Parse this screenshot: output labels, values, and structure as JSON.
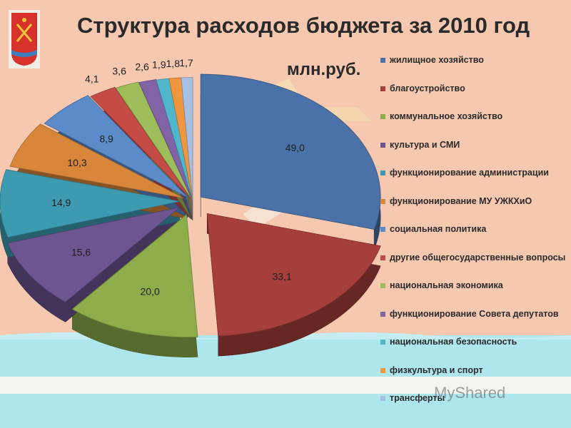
{
  "title": "Структура расходов бюджета за 2010 год",
  "unit_label": "млн.руб.",
  "emblem_icon": "coat-of-arms-icon",
  "watermark": "MyShared",
  "colors": {
    "background": "#f6c8b0",
    "sea": "#aee6ee",
    "stripe": "#f7f3ee"
  },
  "chart_data": {
    "type": "pie",
    "style": "3d-exploded",
    "title": "Структура расходов бюджета за 2010 год",
    "unit": "млн.руб.",
    "legend_position": "right",
    "slices": [
      {
        "label": "жилищное хозяйство",
        "value": 49.0,
        "value_text": "49,0",
        "color": "#4a72a8"
      },
      {
        "label": "благоустройство",
        "value": 33.1,
        "value_text": "33,1",
        "color": "#a63f3c"
      },
      {
        "label": "коммунальное хозяйство",
        "value": 20.0,
        "value_text": "20,0",
        "color": "#8cad4a"
      },
      {
        "label": "культура и СМИ",
        "value": 15.6,
        "value_text": "15,6",
        "color": "#6c5590"
      },
      {
        "label": "функционирование администрации",
        "value": 14.9,
        "value_text": "14,9",
        "color": "#3d9bb1"
      },
      {
        "label": "функционирование МУ УЖКХиО",
        "value": 10.3,
        "value_text": "10,3",
        "color": "#d7863a"
      },
      {
        "label": "социальная политика",
        "value": 8.9,
        "value_text": "8,9",
        "color": "#5b8bc9"
      },
      {
        "label": "другие общегосударственные вопросы",
        "value": 4.1,
        "value_text": "4,1",
        "color": "#c54b47"
      },
      {
        "label": "национальная экономика",
        "value": 3.6,
        "value_text": "3,6",
        "color": "#9ebd5b"
      },
      {
        "label": "функционирование Совета депутатов",
        "value": 2.6,
        "value_text": "2,6",
        "color": "#8163a6"
      },
      {
        "label": "национальная безопасность",
        "value": 1.9,
        "value_text": "1,9",
        "color": "#4fb6cc"
      },
      {
        "label": "физкультура и спорт",
        "value": 1.8,
        "value_text": "1,8",
        "color": "#f0963f"
      },
      {
        "label": "трансферты",
        "value": 1.7,
        "value_text": "1,7",
        "color": "#a7bfe0"
      }
    ]
  }
}
